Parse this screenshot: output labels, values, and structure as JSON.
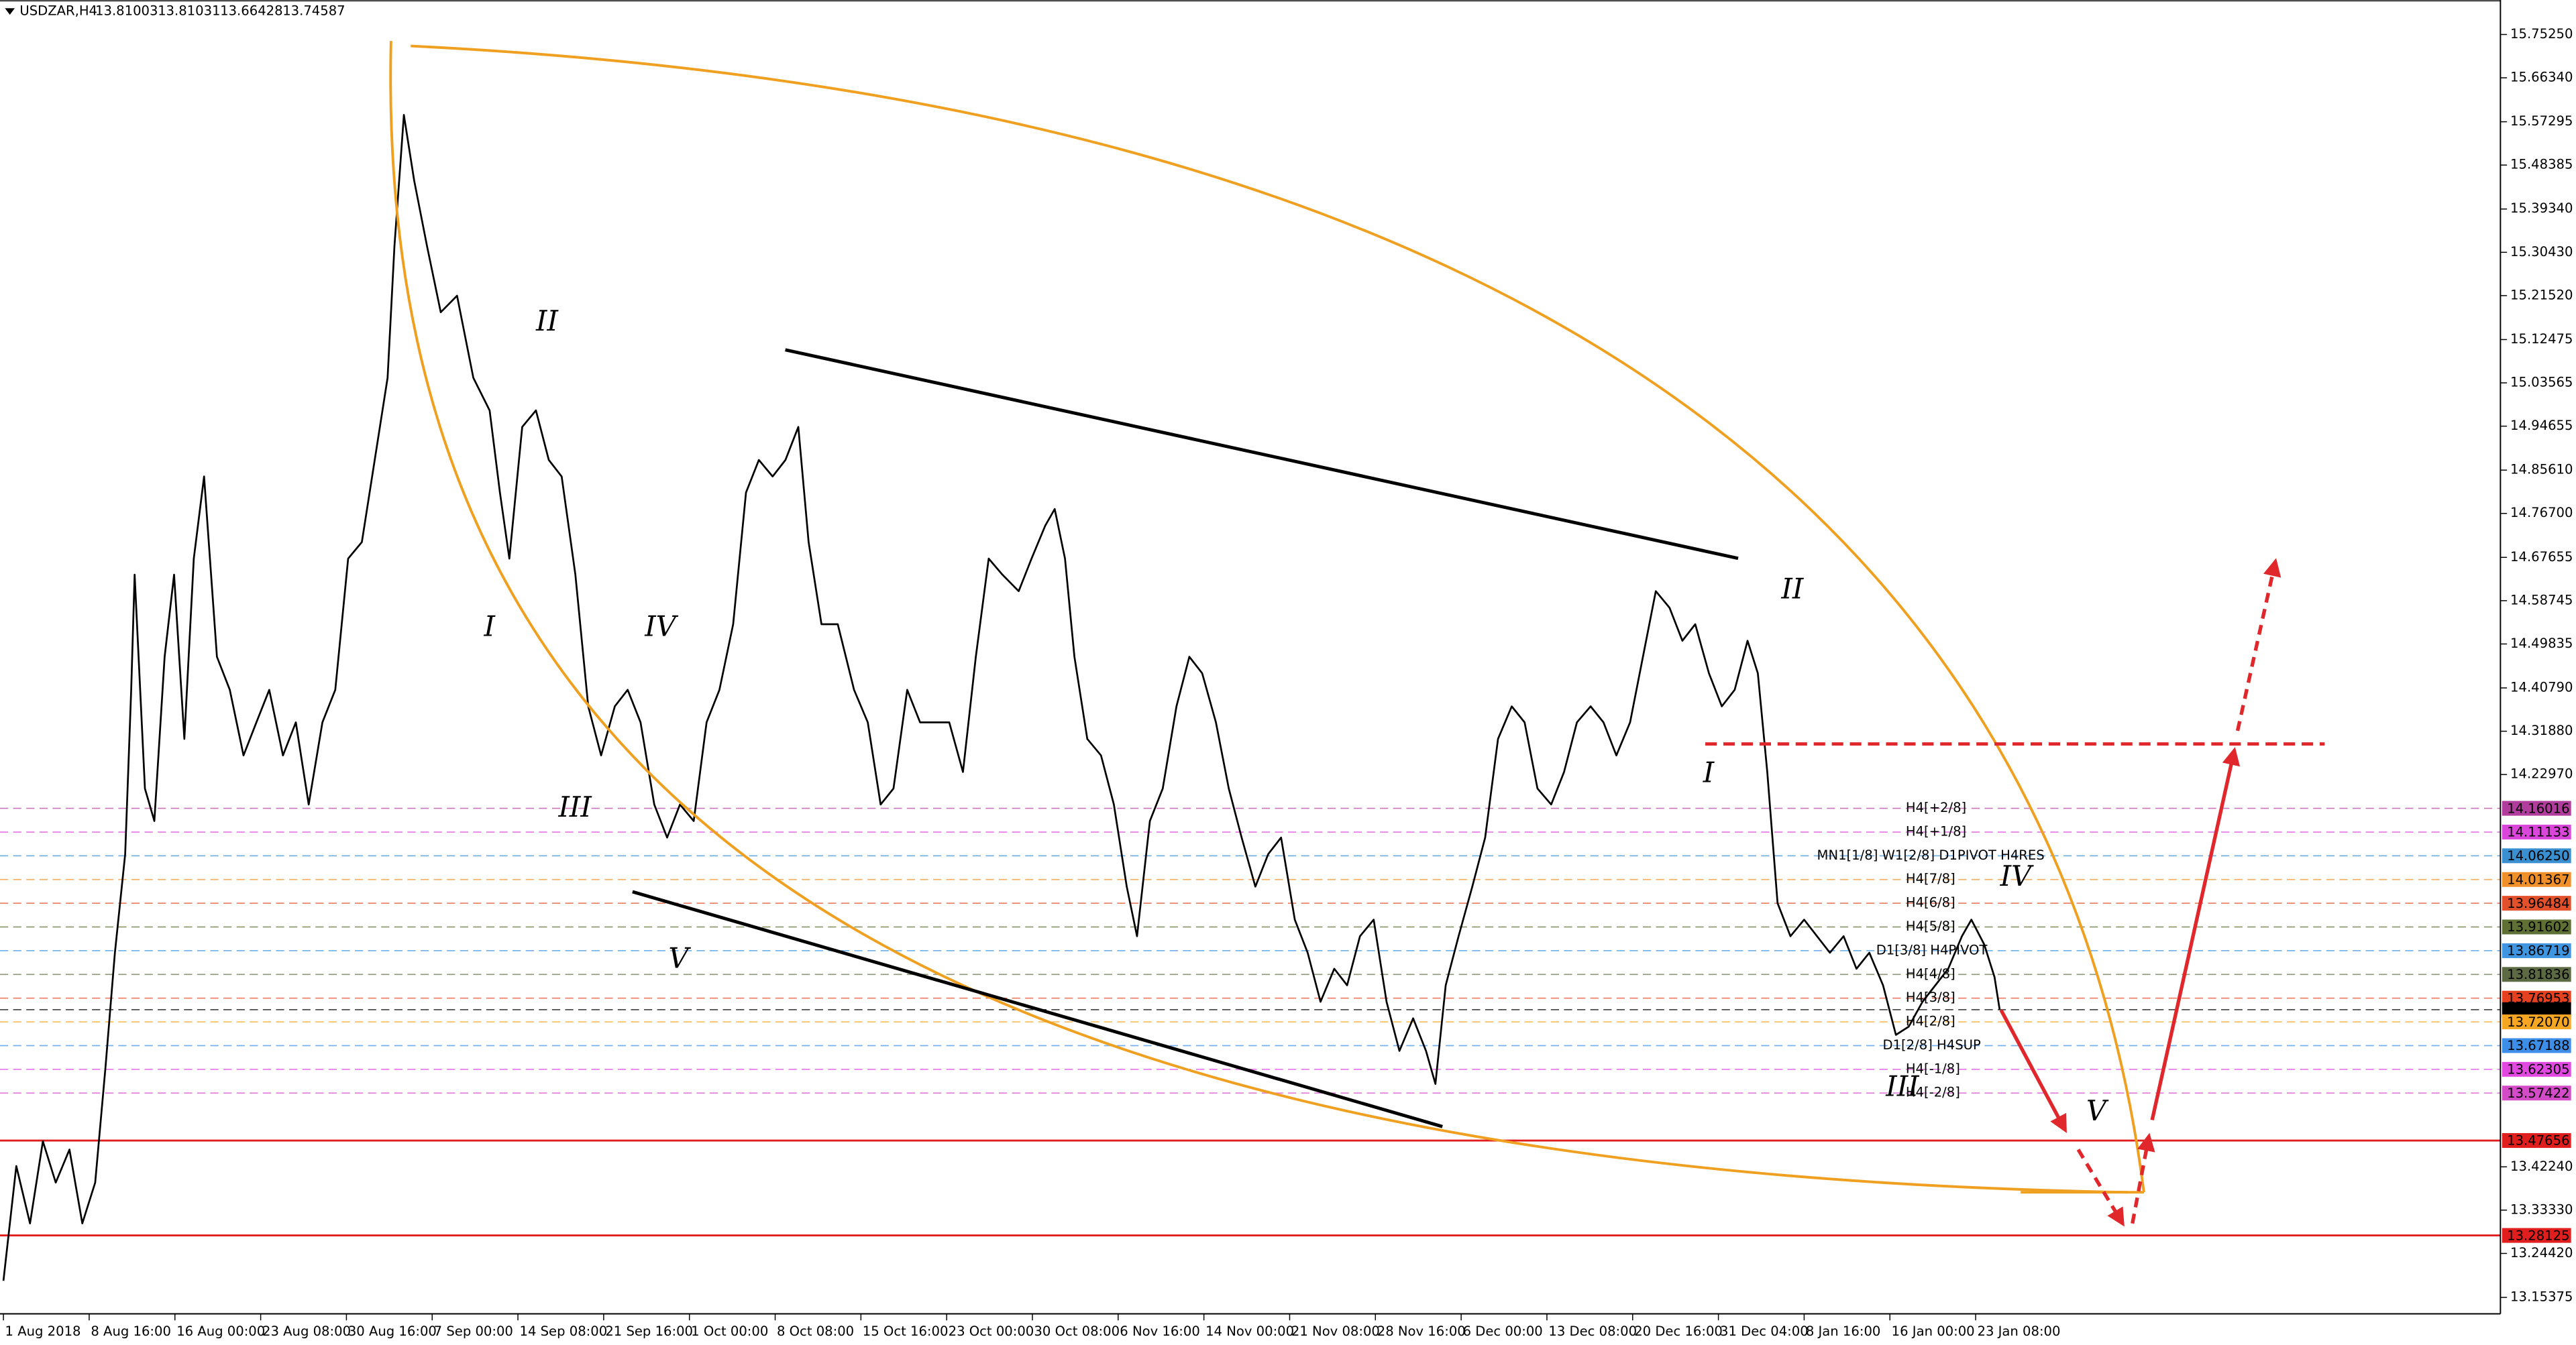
{
  "chart_data": {
    "type": "line",
    "symbol": "USDZAR,H4",
    "quote": [
      13.81003,
      13.81031,
      13.66428,
      13.74587
    ],
    "color": "#000000",
    "xlim": [
      -0.04,
      29.12
    ],
    "ylim": [
      13.12,
      15.8235
    ],
    "xticks": [
      {
        "value": 0,
        "label": "1 Aug 2018"
      },
      {
        "value": 1,
        "label": "8 Aug 16:00"
      },
      {
        "value": 2,
        "label": "16 Aug 00:00"
      },
      {
        "value": 3,
        "label": "23 Aug 08:00"
      },
      {
        "value": 4,
        "label": "30 Aug 16:00"
      },
      {
        "value": 5,
        "label": "7 Sep 00:00"
      },
      {
        "value": 6,
        "label": "14 Sep 08:00"
      },
      {
        "value": 7,
        "label": "21 Sep 16:00"
      },
      {
        "value": 8,
        "label": "1 Oct 00:00"
      },
      {
        "value": 9,
        "label": "8 Oct 08:00"
      },
      {
        "value": 10,
        "label": "15 Oct 16:00"
      },
      {
        "value": 11,
        "label": "23 Oct 00:00"
      },
      {
        "value": 12,
        "label": "30 Oct 08:00"
      },
      {
        "value": 13,
        "label": "6 Nov 16:00"
      },
      {
        "value": 14,
        "label": "14 Nov 00:00"
      },
      {
        "value": 15,
        "label": "21 Nov 08:00"
      },
      {
        "value": 16,
        "label": "28 Nov 16:00"
      },
      {
        "value": 17,
        "label": "6 Dec 00:00"
      },
      {
        "value": 18,
        "label": "13 Dec 08:00"
      },
      {
        "value": 19,
        "label": "20 Dec 16:00"
      },
      {
        "value": 20,
        "label": "31 Dec 04:00"
      },
      {
        "value": 21,
        "label": "8 Jan 16:00"
      },
      {
        "value": 22,
        "label": "16 Jan 00:00"
      },
      {
        "value": 23,
        "label": "23 Jan 08:00"
      }
    ],
    "yticks": [
      {
        "value": 15.7525,
        "label": "15.75250"
      },
      {
        "value": 15.6634,
        "label": "15.66340"
      },
      15.57295,
      15.48385,
      {
        "value": 15.3934,
        "label": "15.39340"
      },
      {
        "value": 15.3043,
        "label": "15.30430"
      },
      {
        "value": 15.2152,
        "label": "15.21520"
      },
      15.12475,
      15.03565,
      14.94655,
      {
        "value": 14.8561,
        "label": "14.85610"
      },
      {
        "value": 14.767,
        "label": "14.76700"
      },
      14.67655,
      14.58745,
      14.49835,
      {
        "value": 14.4079,
        "label": "14.40790"
      },
      {
        "value": 14.3188,
        "label": "14.31880"
      },
      {
        "value": 14.2297,
        "label": "14.22970"
      },
      {
        "value": 13.4224,
        "label": "13.42240"
      },
      {
        "value": 13.3333,
        "label": "13.33330"
      },
      {
        "value": 13.2442,
        "label": "13.24420"
      },
      13.15375
    ],
    "x": [
      0,
      0.15,
      0.31,
      0.46,
      0.61,
      0.77,
      0.92,
      1.07,
      1.19,
      1.3,
      1.42,
      1.49,
      1.53,
      1.65,
      1.76,
      1.88,
      1.99,
      2.11,
      2.22,
      2.34,
      2.49,
      2.64,
      2.8,
      2.95,
      3.1,
      3.26,
      3.41,
      3.56,
      3.72,
      3.87,
      4.02,
      4.18,
      4.33,
      4.48,
      4.56,
      4.67,
      4.79,
      4.94,
      5.1,
      5.29,
      5.48,
      5.67,
      5.79,
      5.9,
      6.05,
      6.21,
      6.36,
      6.51,
      6.67,
      6.82,
      6.97,
      7.13,
      7.28,
      7.43,
      7.59,
      7.74,
      7.89,
      8.05,
      8.2,
      8.35,
      8.51,
      8.66,
      8.81,
      8.97,
      9.12,
      9.27,
      9.39,
      9.54,
      9.73,
      9.92,
      10.08,
      10.23,
      10.38,
      10.54,
      10.69,
      10.88,
      11.03,
      11.19,
      11.34,
      11.49,
      11.65,
      11.84,
      11.99,
      12.15,
      12.26,
      12.38,
      12.49,
      12.64,
      12.8,
      12.95,
      13.1,
      13.22,
      13.37,
      13.52,
      13.68,
      13.83,
      13.98,
      14.14,
      14.29,
      14.44,
      14.6,
      14.75,
      14.9,
      15.06,
      15.21,
      15.36,
      15.52,
      15.67,
      15.82,
      15.98,
      16.13,
      16.28,
      16.44,
      16.59,
      16.7,
      16.82,
      16.97,
      17.13,
      17.28,
      17.43,
      17.59,
      17.74,
      17.89,
      18.05,
      18.2,
      18.35,
      18.51,
      18.66,
      18.81,
      18.97,
      19.12,
      19.27,
      19.43,
      19.58,
      19.73,
      19.89,
      20.04,
      20.19,
      20.34,
      20.46,
      20.57,
      20.69,
      20.84,
      21,
      21.15,
      21.3,
      21.46,
      21.61,
      21.76,
      21.92,
      22.07,
      22.22,
      22.38,
      22.53,
      22.68,
      22.84,
      22.95,
      23.1,
      23.22,
      23.28
    ],
    "values": [
      13.188,
      13.424,
      13.306,
      13.475,
      13.39,
      13.458,
      13.306,
      13.39,
      13.627,
      13.863,
      14.066,
      14.404,
      14.641,
      14.201,
      14.134,
      14.472,
      14.641,
      14.303,
      14.674,
      14.843,
      14.472,
      14.404,
      14.269,
      14.337,
      14.404,
      14.269,
      14.337,
      14.168,
      14.337,
      14.404,
      14.674,
      14.708,
      14.877,
      15.046,
      15.317,
      15.587,
      15.452,
      15.317,
      15.181,
      15.215,
      15.046,
      14.979,
      14.81,
      14.674,
      14.945,
      14.979,
      14.877,
      14.843,
      14.641,
      14.37,
      14.269,
      14.37,
      14.404,
      14.337,
      14.168,
      14.1,
      14.168,
      14.134,
      14.337,
      14.404,
      14.539,
      14.81,
      14.877,
      14.843,
      14.877,
      14.945,
      14.708,
      14.539,
      14.539,
      14.404,
      14.337,
      14.168,
      14.201,
      14.404,
      14.337,
      14.337,
      14.337,
      14.235,
      14.472,
      14.674,
      14.641,
      14.607,
      14.674,
      14.742,
      14.776,
      14.674,
      14.472,
      14.303,
      14.269,
      14.168,
      13.999,
      13.897,
      14.134,
      14.201,
      14.37,
      14.472,
      14.438,
      14.337,
      14.201,
      14.1,
      13.999,
      14.066,
      14.1,
      13.931,
      13.863,
      13.762,
      13.83,
      13.796,
      13.897,
      13.931,
      13.762,
      13.661,
      13.728,
      13.661,
      13.593,
      13.796,
      13.897,
      13.999,
      14.1,
      14.303,
      14.37,
      14.337,
      14.201,
      14.168,
      14.235,
      14.337,
      14.37,
      14.337,
      14.269,
      14.337,
      14.472,
      14.607,
      14.573,
      14.505,
      14.539,
      14.438,
      14.37,
      14.404,
      14.505,
      14.438,
      14.235,
      13.965,
      13.897,
      13.931,
      13.897,
      13.863,
      13.897,
      13.83,
      13.863,
      13.796,
      13.694,
      13.711,
      13.762,
      13.796,
      13.83,
      13.897,
      13.931,
      13.88,
      13.813,
      13.746
    ],
    "levels": [
      {
        "name": "H4[+2/8]",
        "value": 14.16016,
        "color": "#b03c9c"
      },
      {
        "name": "H4[+1/8]",
        "value": 14.11133,
        "color": "#d946d9"
      },
      {
        "name": "MN1[1/8] W1[2/8] D1PIVOT H4RES",
        "value": 14.0625,
        "value_label": "14.06250",
        "color": "#3a8fd0"
      },
      {
        "name": "H4[7/8]",
        "value": 14.01367,
        "color": "#f0902a"
      },
      {
        "name": "H4[6/8]",
        "value": 13.96484,
        "color": "#e2512b"
      },
      {
        "name": "H4[5/8]",
        "value": 13.91602,
        "color": "#5e7033"
      },
      {
        "name": "D1[3/8] H4PIVOT",
        "value": 13.86719,
        "color": "#3f95e0"
      },
      {
        "name": "H4[4/8]",
        "value": 13.81836,
        "color": "#5b6a43"
      },
      {
        "name": "H4[3/8]",
        "value": 13.76953,
        "color": "#e5401f"
      },
      {
        "value": 13.74587,
        "color": "#000000"
      },
      {
        "name": "H4[2/8]",
        "value": 13.7207,
        "value_label": "13.72070",
        "color": "#f5a623"
      },
      {
        "name": "D1[2/8] H4SUP",
        "value": 13.67188,
        "color": "#3d8ee8"
      },
      {
        "name": "H4[-1/8]",
        "value": 13.62305,
        "color": "#e048e0"
      },
      {
        "name": "H4[-2/8]",
        "value": 13.57422,
        "color": "#d34bc6"
      },
      {
        "value": 13.47656,
        "color": "#e01e1e",
        "style": "solid"
      },
      {
        "value": 13.28125,
        "color": "#e01e1e",
        "style": "solid"
      }
    ],
    "annotations": [
      "II",
      "I",
      "IV",
      "III",
      "V",
      "II",
      "I",
      "IV",
      "III",
      "V"
    ]
  }
}
